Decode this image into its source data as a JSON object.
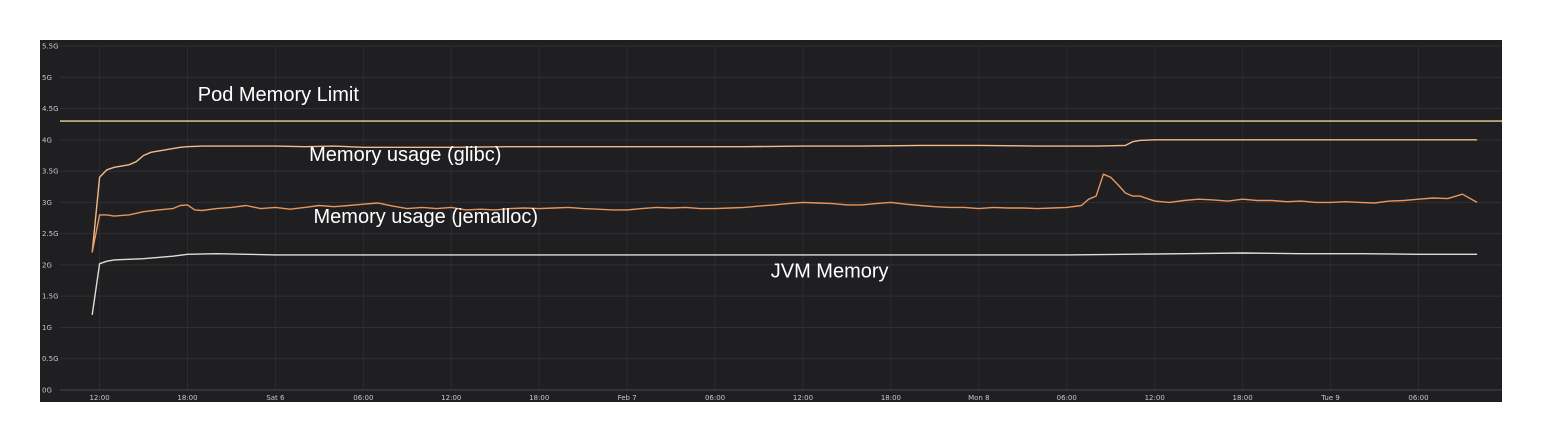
{
  "chart_data": {
    "type": "line",
    "title": "",
    "xlabel": "",
    "ylabel": "",
    "y_ticks": [
      {
        "value": 0,
        "label": "0G"
      },
      {
        "value": 0.5,
        "label": "0.5G"
      },
      {
        "value": 1,
        "label": "1G"
      },
      {
        "value": 1.5,
        "label": "1.5G"
      },
      {
        "value": 2,
        "label": "2G"
      },
      {
        "value": 2.5,
        "label": "2.5G"
      },
      {
        "value": 3,
        "label": "3G"
      },
      {
        "value": 3.5,
        "label": "3.5G"
      },
      {
        "value": 4,
        "label": "4G"
      },
      {
        "value": 4.5,
        "label": "4.5G"
      },
      {
        "value": 5,
        "label": "5G"
      },
      {
        "value": 5.5,
        "label": "5.5G"
      }
    ],
    "x_ticks": [
      {
        "value": 12,
        "label": "12:00"
      },
      {
        "value": 18,
        "label": "18:00"
      },
      {
        "value": 24,
        "label": "Sat 6"
      },
      {
        "value": 30,
        "label": "06:00"
      },
      {
        "value": 36,
        "label": "12:00"
      },
      {
        "value": 42,
        "label": "18:00"
      },
      {
        "value": 48,
        "label": "Feb 7"
      },
      {
        "value": 54,
        "label": "06:00"
      },
      {
        "value": 60,
        "label": "12:00"
      },
      {
        "value": 66,
        "label": "18:00"
      },
      {
        "value": 72,
        "label": "Mon 8"
      },
      {
        "value": 78,
        "label": "06:00"
      },
      {
        "value": 84,
        "label": "12:00"
      },
      {
        "value": 90,
        "label": "18:00"
      },
      {
        "value": 96,
        "label": "Tue 9"
      },
      {
        "value": 102,
        "label": "06:00"
      }
    ],
    "xlim": [
      9.3,
      107.7
    ],
    "ylim": [
      0,
      5.5
    ],
    "grid": true,
    "legend": "none",
    "annotations": [
      {
        "text": "Pod Memory Limit",
        "x": 18.7,
        "y": 4.62
      },
      {
        "text": "Memory usage (glibc)",
        "x": 26.3,
        "y": 3.66
      },
      {
        "text": "Memory usage (jemalloc)",
        "x": 26.6,
        "y": 2.67
      },
      {
        "text": "JVM Memory",
        "x": 57.8,
        "y": 1.8
      }
    ],
    "series": [
      {
        "key": "pod-memory-limit",
        "color": "#e8d79a",
        "x": [
          9.3,
          107.7
        ],
        "y": [
          4.3,
          4.3
        ]
      },
      {
        "key": "memory-usage-glibc",
        "color": "#f2bb8a",
        "x": [
          11.5,
          12.0,
          12.5,
          13.0,
          13.5,
          14.0,
          14.5,
          15.0,
          15.5,
          16.0,
          16.5,
          17.0,
          17.5,
          18.0,
          19.0,
          20.0,
          22.0,
          24.0,
          26.0,
          28.0,
          30.0,
          32.0,
          36.0,
          40.0,
          44.0,
          48.0,
          52.0,
          56.0,
          60.0,
          64.0,
          68.0,
          72.0,
          76.0,
          80.0,
          82.0,
          82.5,
          83.0,
          84.0,
          85.0,
          86.0,
          88.0,
          90.0,
          92.0,
          94.0,
          96.0,
          98.0,
          100.0,
          102.0,
          104.0,
          106.0
        ],
        "y": [
          2.2,
          3.4,
          3.52,
          3.56,
          3.58,
          3.6,
          3.65,
          3.75,
          3.8,
          3.82,
          3.84,
          3.86,
          3.88,
          3.89,
          3.9,
          3.9,
          3.9,
          3.9,
          3.89,
          3.9,
          3.88,
          3.88,
          3.88,
          3.89,
          3.89,
          3.89,
          3.89,
          3.89,
          3.9,
          3.9,
          3.91,
          3.91,
          3.9,
          3.9,
          3.91,
          3.97,
          3.99,
          4.0,
          4.0,
          4.0,
          4.0,
          4.0,
          4.0,
          4.0,
          4.0,
          4.0,
          4.0,
          4.0,
          4.0,
          4.0
        ]
      },
      {
        "key": "memory-usage-jemalloc",
        "color": "#e6955c",
        "x": [
          11.5,
          12.0,
          12.5,
          13.0,
          14.0,
          15.0,
          16.0,
          17.0,
          17.5,
          18.0,
          18.5,
          19.0,
          20.0,
          21.0,
          22.0,
          23.0,
          24.0,
          25.0,
          26.0,
          27.0,
          28.0,
          29.0,
          30.0,
          31.0,
          32.0,
          33.0,
          34.0,
          35.0,
          36.0,
          37.0,
          38.0,
          39.0,
          40.0,
          41.0,
          42.0,
          43.0,
          44.0,
          45.0,
          46.0,
          47.0,
          48.0,
          49.0,
          50.0,
          51.0,
          52.0,
          53.0,
          54.0,
          55.0,
          56.0,
          57.0,
          58.0,
          59.0,
          60.0,
          61.0,
          62.0,
          63.0,
          64.0,
          65.0,
          66.0,
          67.0,
          68.0,
          69.0,
          70.0,
          71.0,
          72.0,
          73.0,
          74.0,
          75.0,
          76.0,
          77.0,
          78.0,
          79.0,
          79.5,
          80.0,
          80.5,
          81.0,
          81.5,
          82.0,
          82.5,
          83.0,
          84.0,
          85.0,
          86.0,
          87.0,
          88.0,
          89.0,
          90.0,
          91.0,
          92.0,
          93.0,
          94.0,
          95.0,
          96.0,
          97.0,
          98.0,
          99.0,
          100.0,
          101.0,
          102.0,
          103.0,
          104.0,
          105.0,
          106.0
        ],
        "y": [
          2.2,
          2.8,
          2.8,
          2.78,
          2.8,
          2.85,
          2.88,
          2.9,
          2.95,
          2.96,
          2.88,
          2.87,
          2.9,
          2.92,
          2.95,
          2.9,
          2.92,
          2.89,
          2.92,
          2.95,
          2.93,
          2.95,
          2.97,
          2.99,
          2.94,
          2.9,
          2.92,
          2.9,
          2.92,
          2.88,
          2.89,
          2.88,
          2.9,
          2.91,
          2.9,
          2.91,
          2.92,
          2.9,
          2.89,
          2.88,
          2.88,
          2.9,
          2.92,
          2.91,
          2.92,
          2.9,
          2.9,
          2.91,
          2.92,
          2.94,
          2.96,
          2.98,
          3.0,
          2.99,
          2.98,
          2.96,
          2.96,
          2.98,
          3.0,
          2.97,
          2.95,
          2.93,
          2.92,
          2.92,
          2.9,
          2.92,
          2.91,
          2.91,
          2.9,
          2.91,
          2.92,
          2.95,
          3.05,
          3.1,
          3.45,
          3.4,
          3.28,
          3.15,
          3.1,
          3.1,
          3.02,
          3.0,
          3.03,
          3.05,
          3.04,
          3.02,
          3.05,
          3.03,
          3.03,
          3.01,
          3.02,
          3.0,
          3.0,
          3.01,
          3.0,
          2.99,
          3.02,
          3.03,
          3.05,
          3.07,
          3.06,
          3.13,
          3.0
        ]
      },
      {
        "key": "jvm-memory",
        "color": "#d8e2d4",
        "x": [
          11.5,
          12.0,
          12.5,
          13.0,
          14.0,
          15.0,
          16.0,
          17.0,
          18.0,
          20.0,
          22.0,
          24.0,
          26.0,
          28.0,
          30.0,
          34.0,
          38.0,
          42.0,
          46.0,
          50.0,
          54.0,
          58.0,
          62.0,
          66.0,
          70.0,
          74.0,
          78.0,
          82.0,
          86.0,
          90.0,
          94.0,
          98.0,
          102.0,
          106.0
        ],
        "y": [
          1.2,
          2.02,
          2.06,
          2.08,
          2.09,
          2.1,
          2.12,
          2.14,
          2.17,
          2.18,
          2.17,
          2.16,
          2.16,
          2.16,
          2.16,
          2.16,
          2.16,
          2.16,
          2.16,
          2.16,
          2.16,
          2.16,
          2.16,
          2.16,
          2.16,
          2.16,
          2.16,
          2.17,
          2.18,
          2.19,
          2.18,
          2.18,
          2.17,
          2.17
        ]
      }
    ]
  }
}
